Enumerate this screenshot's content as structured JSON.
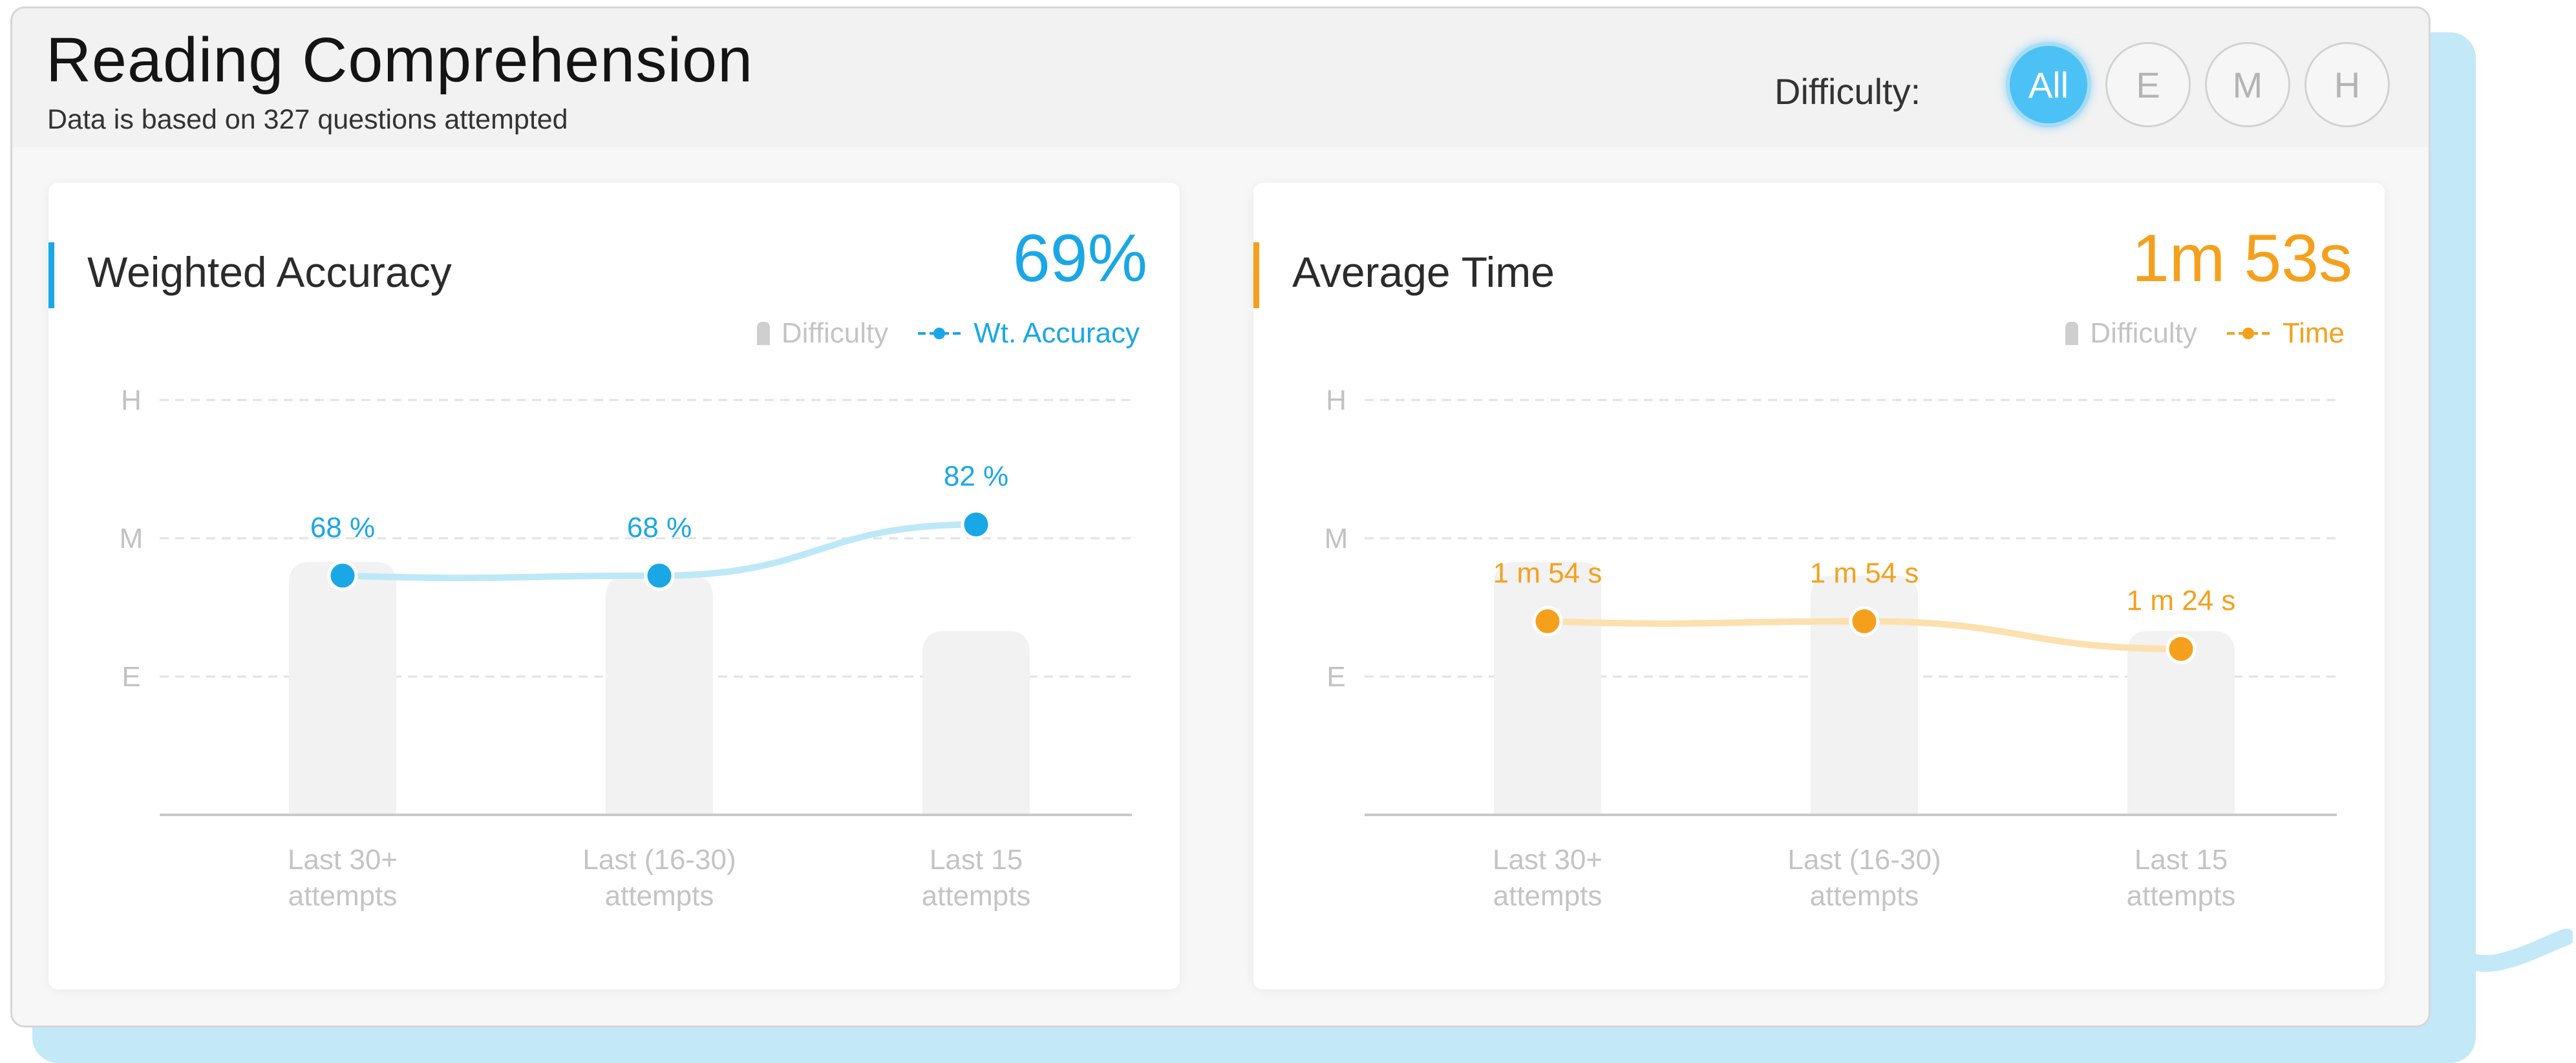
{
  "header": {
    "title": "Reading Comprehension",
    "subtitle": "Data is based on 327 questions attempted",
    "difficulty_label": "Difficulty:",
    "difficulty_options": [
      {
        "label": "All",
        "active": true
      },
      {
        "label": "E",
        "active": false
      },
      {
        "label": "M",
        "active": false
      },
      {
        "label": "H",
        "active": false
      }
    ]
  },
  "panels": [
    {
      "title": "Weighted Accuracy",
      "value": "69%",
      "accent": "#19a7e6",
      "line_color": "#bde8f8",
      "legend": {
        "bar": "Difficulty",
        "line": "Wt. Accuracy"
      }
    },
    {
      "title": "Average Time",
      "value": "1m 53s",
      "accent": "#f5a01c",
      "line_color": "#fce0ae",
      "legend": {
        "bar": "Difficulty",
        "line": "Time"
      }
    }
  ],
  "chart_data": [
    {
      "type": "bar",
      "y_axis_levels": [
        "E",
        "M",
        "H"
      ],
      "categories": [
        [
          "Last 30+",
          "attempts"
        ],
        [
          "Last (16-30)",
          "attempts"
        ],
        [
          "Last 15",
          "attempts"
        ]
      ],
      "series": [
        {
          "name": "Difficulty",
          "type": "bar",
          "values": [
            1.83,
            1.73,
            1.33
          ]
        },
        {
          "name": "Wt. Accuracy",
          "type": "line",
          "values": [
            68,
            68,
            82
          ],
          "labels": [
            "68 %",
            "68 %",
            "82 %"
          ]
        }
      ],
      "grid": true
    },
    {
      "type": "bar",
      "y_axis_levels": [
        "E",
        "M",
        "H"
      ],
      "categories": [
        [
          "Last 30+",
          "attempts"
        ],
        [
          "Last (16-30)",
          "attempts"
        ],
        [
          "Last 15",
          "attempts"
        ]
      ],
      "series": [
        {
          "name": "Difficulty",
          "type": "bar",
          "values": [
            1.83,
            1.73,
            1.33
          ]
        },
        {
          "name": "Time",
          "type": "line",
          "values": [
            114,
            114,
            84
          ],
          "labels": [
            "1 m 54 s",
            "1 m 54 s",
            "1 m 24 s"
          ]
        }
      ],
      "grid": true
    }
  ]
}
